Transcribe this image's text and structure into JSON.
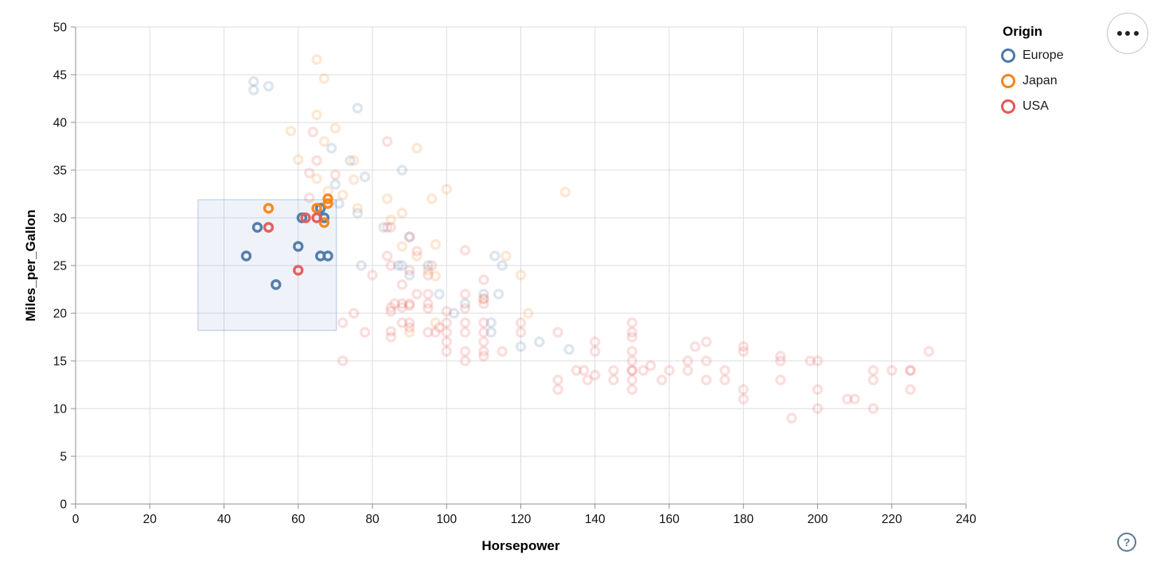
{
  "controls": {
    "menu_button_tooltip": "Menu",
    "help_label": "?"
  },
  "chart_data": {
    "type": "scatter",
    "title": "",
    "xlabel": "Horsepower",
    "ylabel": "Miles_per_Gallon",
    "xlim": [
      0,
      240
    ],
    "ylim": [
      0,
      50
    ],
    "x_ticks": [
      0,
      20,
      40,
      60,
      80,
      100,
      120,
      140,
      160,
      180,
      200,
      220,
      240
    ],
    "y_ticks": [
      0,
      5,
      10,
      15,
      20,
      25,
      30,
      35,
      40,
      45,
      50
    ],
    "grid": true,
    "grid_color": "#dddddd",
    "axis_color": "#919191",
    "legend": {
      "title": "Origin",
      "position": "top-right",
      "entries": [
        {
          "label": "Europe",
          "color": "#4c78a8"
        },
        {
          "label": "Japan",
          "color": "#f58518"
        },
        {
          "label": "USA",
          "color": "#e45756"
        }
      ]
    },
    "brush_selection": {
      "x_domain": [
        33,
        70.3
      ],
      "y_domain": [
        18.2,
        31.9
      ],
      "fill": "rgba(100,140,200,0.10)",
      "stroke": "rgba(100,140,200,0.45)"
    },
    "point_style": {
      "shape": "ring",
      "radius": 5,
      "stroke_width": 3.4,
      "faded_opacity": 0.19,
      "selected_opacity": 0.95
    },
    "series": [
      {
        "name": "Europe",
        "color": "#4c78a8",
        "selected_points": [
          [
            46,
            26
          ],
          [
            49,
            29
          ],
          [
            54,
            23
          ],
          [
            60,
            27
          ],
          [
            61,
            30
          ],
          [
            66,
            31
          ],
          [
            67,
            30
          ],
          [
            66,
            26
          ],
          [
            68,
            26
          ]
        ],
        "points": [
          [
            48,
            44.3
          ],
          [
            48,
            43.4
          ],
          [
            52,
            43.8
          ],
          [
            76,
            41.5
          ],
          [
            69,
            37.3
          ],
          [
            74,
            36
          ],
          [
            88,
            35
          ],
          [
            78,
            34.3
          ],
          [
            70,
            33.5
          ],
          [
            71,
            31.5
          ],
          [
            76,
            30.5
          ],
          [
            83,
            29
          ],
          [
            90,
            28
          ],
          [
            87,
            25
          ],
          [
            90,
            24
          ],
          [
            95,
            25
          ],
          [
            88,
            25
          ],
          [
            77,
            25
          ],
          [
            113,
            26
          ],
          [
            115,
            25
          ],
          [
            114,
            22
          ],
          [
            110,
            22
          ],
          [
            105,
            21
          ],
          [
            102,
            20
          ],
          [
            98,
            22
          ],
          [
            112,
            19
          ],
          [
            112,
            18
          ],
          [
            120,
            16.5
          ],
          [
            125,
            17
          ],
          [
            133,
            16.2
          ]
        ]
      },
      {
        "name": "Japan",
        "color": "#f58518",
        "selected_points": [
          [
            52,
            31
          ],
          [
            65,
            31
          ],
          [
            68,
            32
          ],
          [
            68,
            31.5
          ],
          [
            67,
            29.5
          ]
        ],
        "points": [
          [
            65,
            46.6
          ],
          [
            67,
            44.6
          ],
          [
            65,
            40.8
          ],
          [
            70,
            39.4
          ],
          [
            58,
            39.1
          ],
          [
            67,
            38
          ],
          [
            60,
            36.1
          ],
          [
            75,
            36
          ],
          [
            92,
            37.3
          ],
          [
            75,
            34
          ],
          [
            65,
            34.1
          ],
          [
            68,
            32.8
          ],
          [
            72,
            32.4
          ],
          [
            84,
            32
          ],
          [
            96,
            32
          ],
          [
            100,
            33
          ],
          [
            132,
            32.7
          ],
          [
            76,
            31
          ],
          [
            88,
            30.5
          ],
          [
            85,
            29.8
          ],
          [
            97,
            27.2
          ],
          [
            88,
            27
          ],
          [
            92,
            26
          ],
          [
            116,
            26
          ],
          [
            97,
            23.9
          ],
          [
            120,
            24
          ],
          [
            95,
            24.5
          ],
          [
            110,
            21.5
          ],
          [
            122,
            20
          ],
          [
            97,
            19
          ],
          [
            90,
            18
          ]
        ]
      },
      {
        "name": "USA",
        "color": "#e45756",
        "selected_points": [
          [
            52,
            29
          ],
          [
            60,
            24.5
          ],
          [
            62,
            30
          ],
          [
            65,
            30
          ]
        ],
        "points": [
          [
            64,
            39
          ],
          [
            84,
            38
          ],
          [
            63,
            34.7
          ],
          [
            70,
            34.5
          ],
          [
            63,
            32.1
          ],
          [
            65,
            36
          ],
          [
            84,
            29
          ],
          [
            85,
            29
          ],
          [
            90,
            28
          ],
          [
            92,
            26.5
          ],
          [
            96,
            25
          ],
          [
            80,
            24
          ],
          [
            84,
            26
          ],
          [
            85,
            25
          ],
          [
            88,
            23
          ],
          [
            90,
            24.5
          ],
          [
            92,
            22
          ],
          [
            72,
            15
          ],
          [
            78,
            18
          ],
          [
            72,
            19
          ],
          [
            75,
            20
          ],
          [
            85,
            17.5
          ],
          [
            85,
            18.1
          ],
          [
            85,
            20.2
          ],
          [
            85,
            20.6
          ],
          [
            86,
            21
          ],
          [
            88,
            19
          ],
          [
            88,
            20.6
          ],
          [
            88,
            21
          ],
          [
            90,
            18.5
          ],
          [
            90,
            19
          ],
          [
            90,
            20.8
          ],
          [
            90,
            21
          ],
          [
            95,
            18
          ],
          [
            95,
            20.5
          ],
          [
            95,
            21
          ],
          [
            95,
            22
          ],
          [
            95,
            24
          ],
          [
            97,
            18
          ],
          [
            98,
            18.5
          ],
          [
            100,
            16
          ],
          [
            100,
            17
          ],
          [
            100,
            18
          ],
          [
            100,
            19
          ],
          [
            100,
            20.2
          ],
          [
            105,
            15
          ],
          [
            105,
            16
          ],
          [
            105,
            18
          ],
          [
            105,
            19
          ],
          [
            105,
            20.5
          ],
          [
            105,
            22
          ],
          [
            105,
            26.6
          ],
          [
            110,
            15.5
          ],
          [
            110,
            16
          ],
          [
            110,
            17
          ],
          [
            110,
            18
          ],
          [
            110,
            19
          ],
          [
            110,
            21
          ],
          [
            110,
            21.5
          ],
          [
            110,
            23.5
          ],
          [
            115,
            16
          ],
          [
            120,
            18
          ],
          [
            120,
            19
          ],
          [
            130,
            12
          ],
          [
            130,
            13
          ],
          [
            130,
            18
          ],
          [
            135,
            14
          ],
          [
            137,
            14
          ],
          [
            138,
            13
          ],
          [
            140,
            13.5
          ],
          [
            140,
            16
          ],
          [
            140,
            17
          ],
          [
            145,
            13
          ],
          [
            145,
            14
          ],
          [
            150,
            12
          ],
          [
            150,
            13
          ],
          [
            150,
            14
          ],
          [
            150,
            14
          ],
          [
            150,
            15
          ],
          [
            150,
            16
          ],
          [
            150,
            17.5
          ],
          [
            150,
            18
          ],
          [
            150,
            19
          ],
          [
            153,
            14
          ],
          [
            155,
            14.5
          ],
          [
            158,
            13
          ],
          [
            160,
            14
          ],
          [
            165,
            14
          ],
          [
            165,
            15
          ],
          [
            167,
            16.5
          ],
          [
            170,
            13
          ],
          [
            170,
            15
          ],
          [
            170,
            17
          ],
          [
            175,
            13
          ],
          [
            175,
            14
          ],
          [
            180,
            11
          ],
          [
            180,
            12
          ],
          [
            180,
            16
          ],
          [
            180,
            16.5
          ],
          [
            190,
            13
          ],
          [
            190,
            15
          ],
          [
            190,
            15.5
          ],
          [
            193,
            9
          ],
          [
            198,
            15
          ],
          [
            200,
            10
          ],
          [
            200,
            12
          ],
          [
            200,
            15
          ],
          [
            208,
            11
          ],
          [
            210,
            11
          ],
          [
            215,
            10
          ],
          [
            215,
            13
          ],
          [
            215,
            14
          ],
          [
            220,
            14
          ],
          [
            225,
            12
          ],
          [
            225,
            14
          ],
          [
            225,
            14
          ],
          [
            230,
            16
          ]
        ]
      }
    ]
  }
}
